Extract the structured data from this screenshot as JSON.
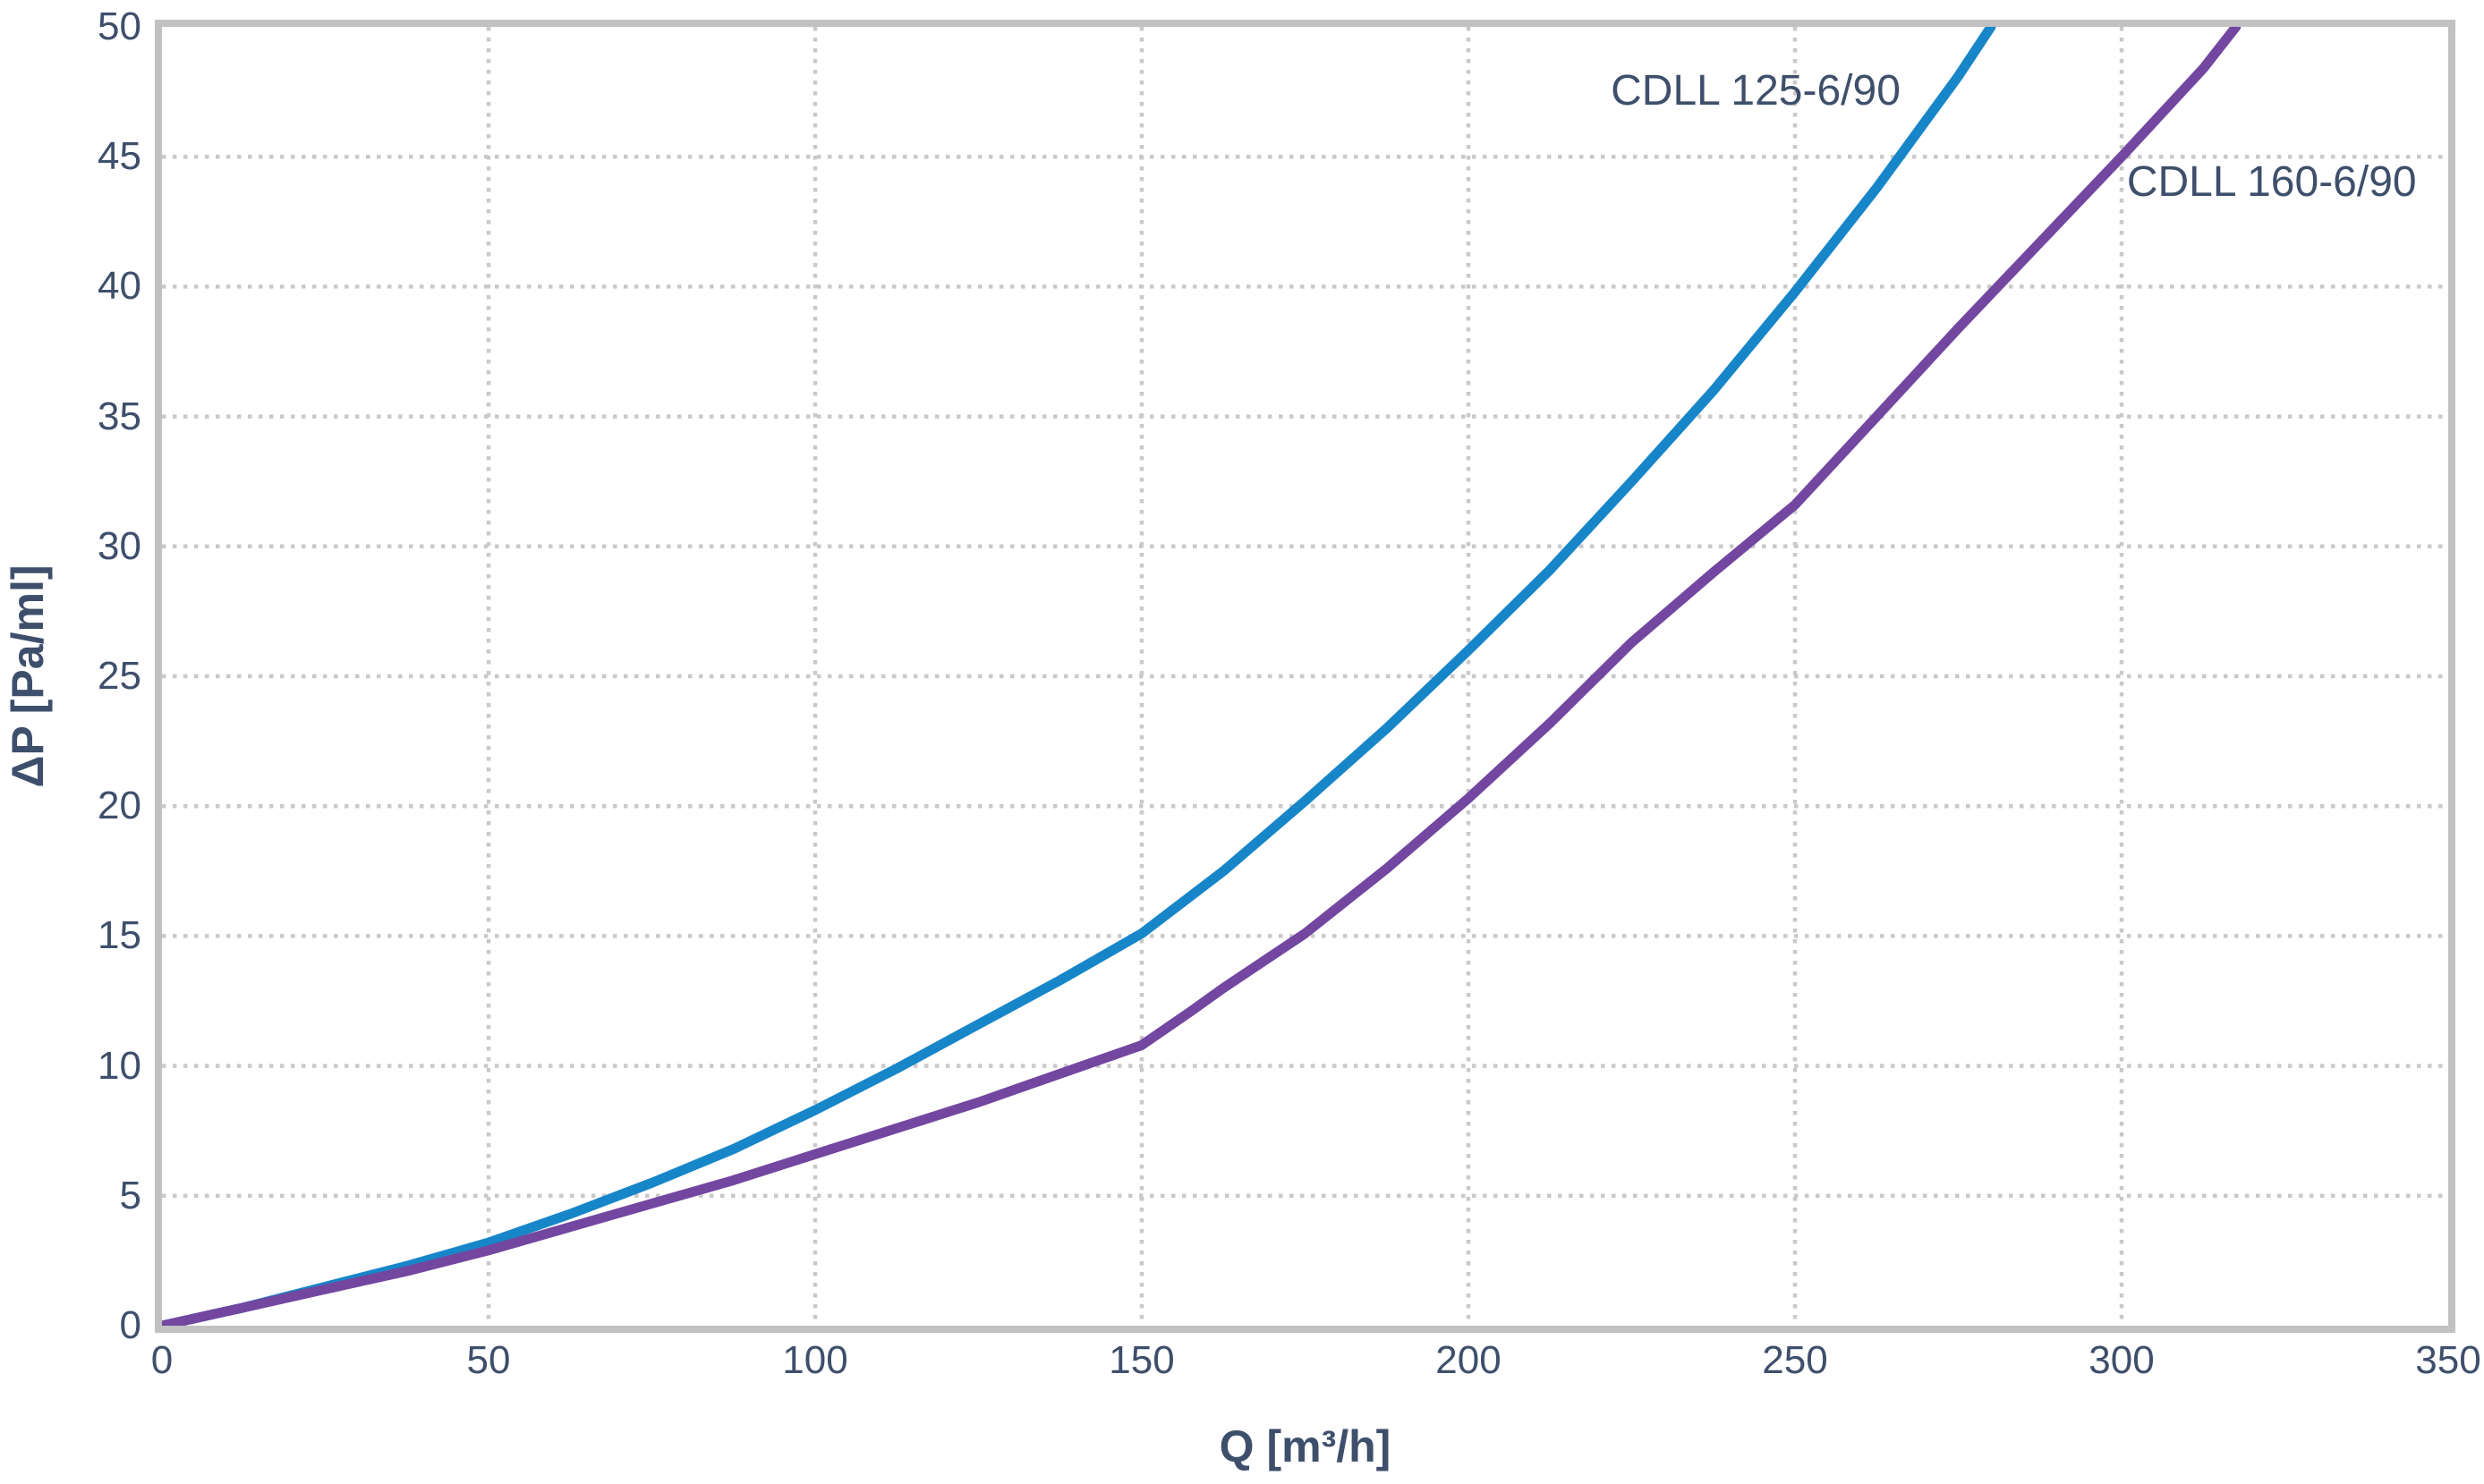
{
  "chart_data": {
    "type": "line",
    "title": "",
    "xlabel": "Q [m³/h]",
    "ylabel": "ΔP [Pa/ml]",
    "xlim": [
      0,
      350
    ],
    "ylim": [
      0,
      50
    ],
    "x_ticks": [
      0,
      50,
      100,
      150,
      200,
      250,
      300,
      350
    ],
    "y_ticks": [
      0,
      5,
      10,
      15,
      20,
      25,
      30,
      35,
      40,
      45,
      50
    ],
    "grid": "dotted",
    "legend_position": "labels-next-to-curves",
    "colors": {
      "text": "#3e4f6b",
      "grid": "#c9c9c9",
      "border": "#c1c1c1",
      "plot_background": "#ffffff"
    },
    "series": [
      {
        "name": "CDLL 125-6/90",
        "color": "#1786c9",
        "label_pos": [
          221.8,
          48.2
        ],
        "points": [
          [
            0,
            0
          ],
          [
            12.5,
            0.7
          ],
          [
            25,
            1.5
          ],
          [
            37.5,
            2.3
          ],
          [
            50,
            3.2
          ],
          [
            62.5,
            4.3
          ],
          [
            75,
            5.5
          ],
          [
            87.5,
            6.8
          ],
          [
            100,
            8.3
          ],
          [
            112.5,
            9.9
          ],
          [
            125,
            11.6
          ],
          [
            137.5,
            13.3
          ],
          [
            150,
            15.1
          ],
          [
            162.5,
            17.5
          ],
          [
            175,
            20.2
          ],
          [
            187.5,
            23.0
          ],
          [
            200,
            26.0
          ],
          [
            212.5,
            29.1
          ],
          [
            225,
            32.5
          ],
          [
            237.5,
            36.0
          ],
          [
            250,
            39.8
          ],
          [
            262.5,
            43.8
          ],
          [
            275,
            48.1
          ],
          [
            280,
            50
          ]
        ]
      },
      {
        "name": "CDLL 160-6/90",
        "color": "#7347a0",
        "label_pos": [
          300.8,
          44.7
        ],
        "points": [
          [
            0,
            0
          ],
          [
            12.5,
            0.7
          ],
          [
            25,
            1.4
          ],
          [
            37.5,
            2.1
          ],
          [
            50,
            2.9
          ],
          [
            62.5,
            3.8
          ],
          [
            75,
            4.7
          ],
          [
            87.5,
            5.6
          ],
          [
            100,
            6.6
          ],
          [
            112.5,
            7.6
          ],
          [
            125,
            8.6
          ],
          [
            137.5,
            9.7
          ],
          [
            150,
            10.8
          ],
          [
            157.5,
            12.1
          ],
          [
            162.5,
            13.0
          ],
          [
            175,
            15.1
          ],
          [
            187.5,
            17.6
          ],
          [
            200,
            20.3
          ],
          [
            212.5,
            23.2
          ],
          [
            225,
            26.3
          ],
          [
            237.5,
            29.0
          ],
          [
            250,
            31.6
          ],
          [
            262.5,
            35.0
          ],
          [
            275,
            38.4
          ],
          [
            287.5,
            41.7
          ],
          [
            300,
            45.0
          ],
          [
            312.5,
            48.4
          ],
          [
            317.5,
            50
          ]
        ]
      }
    ]
  }
}
